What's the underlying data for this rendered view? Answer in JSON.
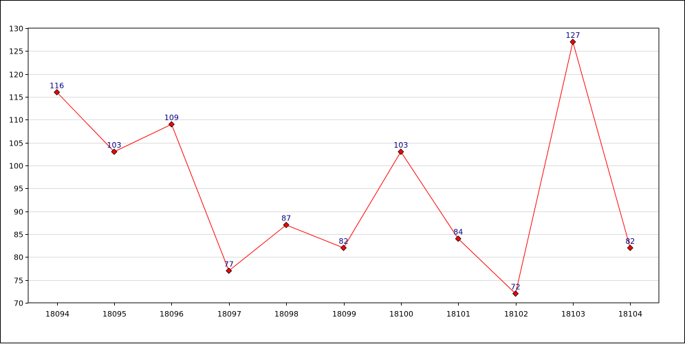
{
  "chart_data": {
    "type": "line",
    "title": "",
    "xlabel": "",
    "ylabel": "",
    "categories": [
      "18094",
      "18095",
      "18096",
      "18097",
      "18098",
      "18099",
      "18100",
      "18101",
      "18102",
      "18103",
      "18104"
    ],
    "series": [
      {
        "values": [
          116,
          103,
          109,
          77,
          87,
          82,
          103,
          84,
          72,
          127,
          82
        ],
        "color": "#ff0000"
      }
    ],
    "ylim": [
      70,
      130
    ],
    "yticks": [
      70,
      75,
      80,
      85,
      90,
      95,
      100,
      105,
      110,
      115,
      120,
      125,
      130
    ],
    "grid": true,
    "data_labels": true,
    "marker": "diamond",
    "marker_color": "#ff0000"
  }
}
